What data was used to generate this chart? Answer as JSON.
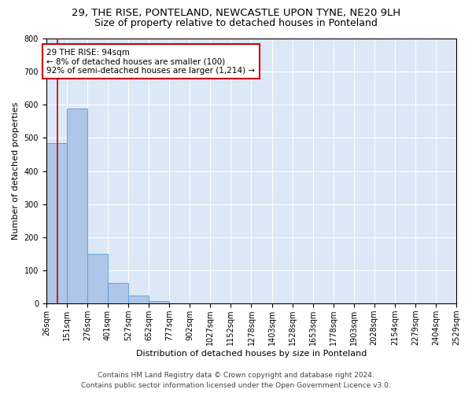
{
  "title": "29, THE RISE, PONTELAND, NEWCASTLE UPON TYNE, NE20 9LH",
  "subtitle": "Size of property relative to detached houses in Ponteland",
  "xlabel": "Distribution of detached houses by size in Ponteland",
  "ylabel": "Number of detached properties",
  "bar_edges": [
    26,
    151,
    276,
    401,
    527,
    652,
    777,
    902,
    1027,
    1152,
    1278,
    1403,
    1528,
    1653,
    1778,
    1903,
    2028,
    2154,
    2279,
    2404,
    2529
  ],
  "bar_heights": [
    485,
    590,
    150,
    62,
    25,
    8,
    0,
    0,
    0,
    0,
    0,
    0,
    0,
    0,
    0,
    0,
    0,
    0,
    0,
    0
  ],
  "bar_color": "#aec6e8",
  "bar_edge_color": "#5b9bd5",
  "vline_x": 94,
  "vline_color": "#cc0000",
  "annotation_line1": "29 THE RISE: 94sqm",
  "annotation_line2": "← 8% of detached houses are smaller (100)",
  "annotation_line3": "92% of semi-detached houses are larger (1,214) →",
  "annotation_box_color": "#cc0000",
  "ylim": [
    0,
    800
  ],
  "yticks": [
    0,
    100,
    200,
    300,
    400,
    500,
    600,
    700,
    800
  ],
  "footer_line1": "Contains HM Land Registry data © Crown copyright and database right 2024.",
  "footer_line2": "Contains public sector information licensed under the Open Government Licence v3.0.",
  "bg_color": "#dce8f5",
  "fig_bg_color": "#ffffff",
  "title_fontsize": 9.5,
  "subtitle_fontsize": 9,
  "axis_label_fontsize": 8,
  "tick_fontsize": 7,
  "footer_fontsize": 6.5,
  "annotation_fontsize": 7.5
}
